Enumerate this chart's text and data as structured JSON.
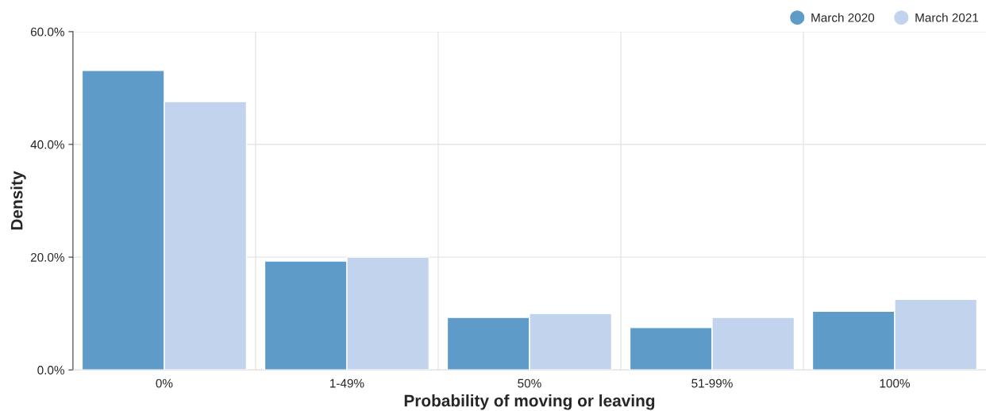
{
  "chart_data": {
    "type": "bar",
    "xlabel": "Probability of moving or leaving",
    "ylabel": "Density",
    "categories": [
      "0%",
      "1-49%",
      "50%",
      "51-99%",
      "100%"
    ],
    "series": [
      {
        "name": "March 2020",
        "color": "#5f9bc8",
        "values": [
          53.1,
          19.3,
          9.3,
          7.5,
          10.4
        ]
      },
      {
        "name": "March 2021",
        "color": "#c2d4ed",
        "values": [
          47.6,
          20.0,
          10.0,
          9.3,
          12.5
        ]
      }
    ],
    "ylim": [
      0,
      60
    ],
    "yticks": [
      {
        "value": 0,
        "label": "0.0%"
      },
      {
        "value": 20,
        "label": "20.0%"
      },
      {
        "value": 40,
        "label": "40.0%"
      },
      {
        "value": 60,
        "label": "60.0%"
      }
    ],
    "grid": true,
    "legend": "top right"
  }
}
